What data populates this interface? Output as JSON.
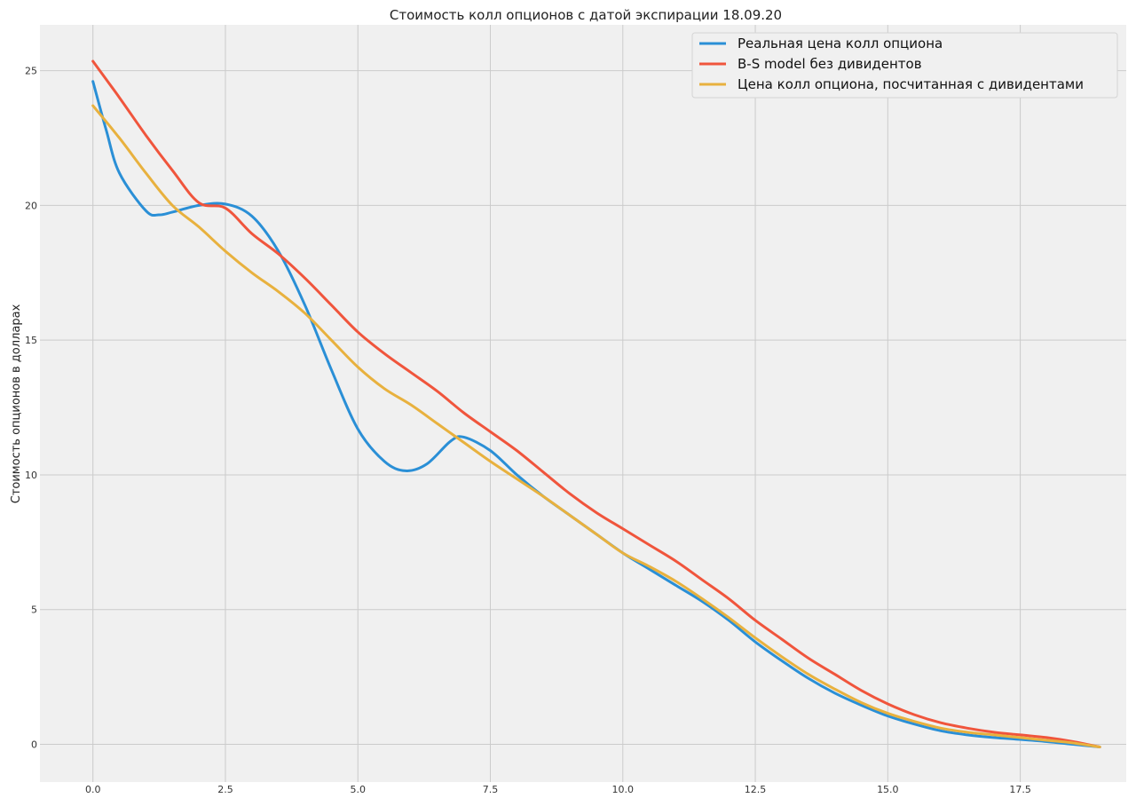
{
  "chart_data": {
    "type": "line",
    "title": "Стоимость колл опционов с датой экспирации 18.09.20",
    "xlabel": "",
    "ylabel": "Стоимость опционов в долларах",
    "xlim": [
      -1.0,
      19.5
    ],
    "ylim": [
      -1.4,
      26.7
    ],
    "x_ticks": [
      0.0,
      2.5,
      5.0,
      7.5,
      10.0,
      12.5,
      15.0,
      17.5
    ],
    "x_tick_labels": [
      "0.0",
      "2.5",
      "5.0",
      "7.5",
      "10.0",
      "12.5",
      "15.0",
      "17.5"
    ],
    "y_ticks": [
      0,
      5,
      10,
      15,
      20,
      25
    ],
    "y_tick_labels": [
      "0",
      "5",
      "10",
      "15",
      "20",
      "25"
    ],
    "grid": true,
    "legend_position": "top-right",
    "background": "#f0f0f0",
    "series": [
      {
        "name": "Реальная цена колл опциона",
        "color": "#2a8fd6",
        "x": [
          0,
          0.25,
          0.5,
          1.0,
          1.25,
          1.5,
          2.0,
          2.5,
          3.0,
          3.5,
          4.0,
          4.5,
          5.0,
          5.5,
          5.9,
          6.3,
          6.75,
          7.0,
          7.5,
          8.0,
          8.5,
          9.0,
          9.5,
          10.0,
          10.5,
          11.0,
          11.5,
          12.0,
          12.5,
          13.0,
          13.5,
          14.0,
          14.5,
          15.0,
          15.5,
          16.0,
          16.5,
          17.0,
          17.5,
          18.0,
          18.5,
          19.0
        ],
        "y": [
          24.6,
          22.8,
          21.2,
          19.8,
          19.65,
          19.75,
          20.0,
          20.05,
          19.6,
          18.3,
          16.3,
          13.9,
          11.7,
          10.5,
          10.15,
          10.4,
          11.25,
          11.4,
          10.9,
          10.0,
          9.2,
          8.5,
          7.8,
          7.1,
          6.5,
          5.9,
          5.3,
          4.6,
          3.8,
          3.1,
          2.45,
          1.9,
          1.45,
          1.05,
          0.75,
          0.5,
          0.35,
          0.25,
          0.18,
          0.1,
          0.0,
          -0.1
        ]
      },
      {
        "name": "B-S model без дивидентов",
        "color": "#f0553c",
        "x": [
          0,
          0.5,
          1.0,
          1.5,
          2.0,
          2.5,
          3.0,
          3.5,
          4.0,
          4.5,
          5.0,
          5.5,
          6.0,
          6.5,
          7.0,
          7.5,
          8.0,
          8.5,
          9.0,
          9.5,
          10.0,
          10.5,
          11.0,
          11.5,
          12.0,
          12.5,
          13.0,
          13.5,
          14.0,
          14.5,
          15.0,
          15.5,
          16.0,
          16.5,
          17.0,
          17.5,
          18.0,
          18.5,
          19.0
        ],
        "y": [
          25.35,
          24.0,
          22.6,
          21.3,
          20.1,
          19.9,
          18.95,
          18.2,
          17.3,
          16.3,
          15.3,
          14.5,
          13.8,
          13.1,
          12.3,
          11.6,
          10.9,
          10.1,
          9.3,
          8.6,
          8.0,
          7.4,
          6.8,
          6.1,
          5.4,
          4.6,
          3.9,
          3.2,
          2.6,
          2.0,
          1.5,
          1.1,
          0.8,
          0.6,
          0.45,
          0.35,
          0.25,
          0.1,
          -0.1
        ]
      },
      {
        "name": "Цена колл опциона, посчитанная с дивидентами",
        "color": "#e8b13e",
        "x": [
          0,
          0.5,
          1.0,
          1.5,
          2.0,
          2.5,
          3.0,
          3.5,
          4.0,
          4.5,
          5.0,
          5.5,
          6.0,
          6.5,
          7.0,
          7.5,
          8.0,
          8.5,
          9.0,
          9.5,
          10.0,
          10.5,
          11.0,
          11.5,
          12.0,
          12.5,
          13.0,
          13.5,
          14.0,
          14.5,
          15.0,
          15.5,
          16.0,
          16.5,
          17.0,
          17.5,
          18.0,
          18.5,
          19.0
        ],
        "y": [
          23.7,
          22.5,
          21.2,
          20.0,
          19.2,
          18.3,
          17.5,
          16.8,
          16.0,
          15.0,
          14.0,
          13.2,
          12.6,
          11.9,
          11.2,
          10.5,
          9.85,
          9.2,
          8.5,
          7.8,
          7.1,
          6.6,
          6.05,
          5.4,
          4.7,
          3.95,
          3.25,
          2.6,
          2.05,
          1.55,
          1.15,
          0.85,
          0.6,
          0.45,
          0.35,
          0.25,
          0.15,
          0.05,
          -0.1
        ]
      }
    ]
  }
}
